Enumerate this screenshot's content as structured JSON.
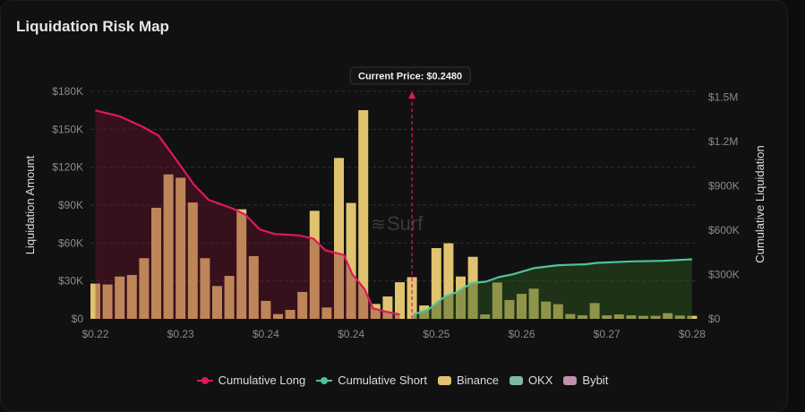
{
  "title": "Liquidation Risk Map",
  "watermark": "Surf",
  "chart_data": {
    "type": "bar",
    "title": "Liquidation Risk Map",
    "ylabel": "Liquidation Amount",
    "y2label": "Cumulative Liquidation",
    "ylim": [
      0,
      180000
    ],
    "y2lim": [
      0,
      1540000
    ],
    "yticks": [
      "$0",
      "$30K",
      "$60K",
      "$90K",
      "$120K",
      "$150K",
      "$180K"
    ],
    "yticks_values": [
      0,
      30000,
      60000,
      90000,
      120000,
      150000,
      180000
    ],
    "y2ticks": [
      "$0",
      "$300K",
      "$600K",
      "$900K",
      "$1.2M",
      "$1.5M"
    ],
    "y2ticks_values": [
      0,
      300000,
      600000,
      900000,
      1200000,
      1500000
    ],
    "xticks": [
      "$0.22",
      "$0.23",
      "$0.24",
      "$0.24",
      "$0.25",
      "$0.26",
      "$0.27",
      "$0.28"
    ],
    "xticks_bar_index": [
      0,
      7,
      14,
      21,
      28,
      35,
      42,
      49
    ],
    "grid": true,
    "legend_position": "bottom",
    "current_price": {
      "label": "Current Price: $0.2480",
      "bar_index": 26
    },
    "series": [
      {
        "name": "Binance",
        "type": "bar",
        "color": "#e0c36e",
        "values": [
          27900,
          27200,
          33500,
          34700,
          48000,
          87900,
          114300,
          111700,
          92100,
          48000,
          26000,
          34000,
          86700,
          49600,
          14200,
          3800,
          7100,
          21300,
          85500,
          9000,
          127300,
          91700,
          165100,
          11800,
          17700,
          29000,
          33000,
          10600,
          56000,
          59800,
          33500,
          49100,
          3500,
          28800,
          14900,
          19800,
          23900,
          13700,
          11600,
          3800,
          2800,
          12500,
          2800,
          3500,
          2800,
          2400,
          2400,
          4500,
          2600,
          2400
        ]
      },
      {
        "name": "OKX",
        "type": "bar",
        "color": "#7fb8a8",
        "values": []
      },
      {
        "name": "Bybit",
        "type": "bar",
        "color": "#c08fb0",
        "values": []
      },
      {
        "name": "Cumulative Long",
        "type": "line",
        "axis": "right",
        "color": "#e0195a",
        "points": [
          [
            0,
            1411000
          ],
          [
            2,
            1371000
          ],
          [
            3.9,
            1300000
          ],
          [
            5.2,
            1240000
          ],
          [
            6.9,
            1048000
          ],
          [
            8.1,
            907000
          ],
          [
            9.3,
            806000
          ],
          [
            11.3,
            746000
          ],
          [
            12.3,
            706000
          ],
          [
            13.5,
            605000
          ],
          [
            14.7,
            575000
          ],
          [
            16.7,
            565000
          ],
          [
            17.9,
            544000
          ],
          [
            18.9,
            464000
          ],
          [
            20.4,
            433000
          ],
          [
            21.1,
            302000
          ],
          [
            22.1,
            202000
          ],
          [
            22.8,
            71000
          ],
          [
            23.8,
            50000
          ],
          [
            25,
            30000
          ]
        ]
      },
      {
        "name": "Cumulative Short",
        "type": "line",
        "axis": "right",
        "color": "#4cc49a",
        "points": [
          [
            26.1,
            30000
          ],
          [
            27.3,
            60000
          ],
          [
            28.7,
            151000
          ],
          [
            29.7,
            181000
          ],
          [
            30.9,
            242000
          ],
          [
            32.1,
            252000
          ],
          [
            33.1,
            282000
          ],
          [
            34.3,
            302000
          ],
          [
            36,
            343000
          ],
          [
            38,
            363000
          ],
          [
            40.2,
            369000
          ],
          [
            41.2,
            379000
          ],
          [
            44.1,
            389000
          ],
          [
            46.6,
            393000
          ],
          [
            49,
            403000
          ]
        ]
      }
    ]
  },
  "legend": [
    {
      "label": "Cumulative Long",
      "color": "#e0195a",
      "kind": "line"
    },
    {
      "label": "Cumulative Short",
      "color": "#4cc49a",
      "kind": "line"
    },
    {
      "label": "Binance",
      "color": "#e0c36e",
      "kind": "box"
    },
    {
      "label": "OKX",
      "color": "#7fb8a8",
      "kind": "box"
    },
    {
      "label": "Bybit",
      "color": "#c08fb0",
      "kind": "box"
    }
  ]
}
